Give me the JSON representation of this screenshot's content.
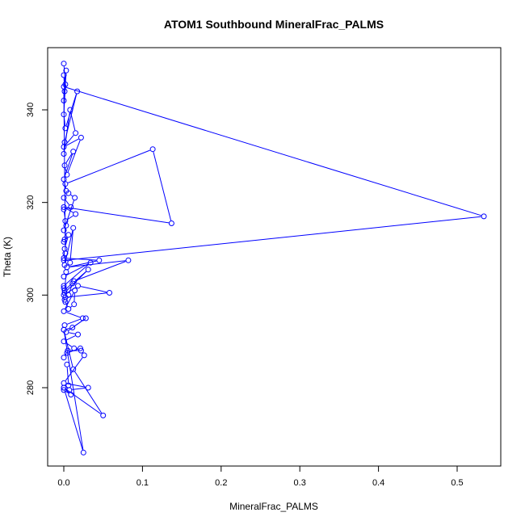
{
  "chart_data": {
    "type": "line",
    "title": "ATOM1 Southbound MineralFrac_PALMS",
    "xlabel": "MineralFrac_PALMS",
    "ylabel": "Theta (K)",
    "xlim": [
      0,
      0.55
    ],
    "ylim": [
      265,
      352
    ],
    "x_ticks": [
      0.0,
      0.1,
      0.2,
      0.3,
      0.4,
      0.5
    ],
    "x_tick_labels": [
      "0.0",
      "0.1",
      "0.2",
      "0.3",
      "0.4",
      "0.5"
    ],
    "y_ticks": [
      280,
      300,
      320,
      340
    ],
    "y_tick_labels": [
      "280",
      "300",
      "320",
      "340"
    ],
    "grid": false,
    "series_color": "#0000ff",
    "marker": "open-circle",
    "series": [
      {
        "x": [
          0.0,
          0.002,
          0.0,
          0.001,
          0.0,
          0.003,
          0.0,
          0.002,
          0.017,
          0.001,
          0.0,
          0.008,
          0.015,
          0.0,
          0.022,
          0.004,
          0.001,
          0.012,
          0.0,
          0.003,
          0.002,
          0.113,
          0.137,
          0.0,
          0.015,
          0.002,
          0.0,
          0.009,
          0.0,
          0.006,
          0.014,
          0.0,
          0.003,
          0.001,
          0.0,
          0.006,
          0.001,
          0.0,
          0.534,
          0.0,
          0.002,
          0.001,
          0.012,
          0.008,
          0.0,
          0.045,
          0.004,
          0.082,
          0.013,
          0.001,
          0.0,
          0.034,
          0.0,
          0.003,
          0.001,
          0.031,
          0.011,
          0.006,
          0.0,
          0.002,
          0.058,
          0.018,
          0.0,
          0.002,
          0.001,
          0.006,
          0.013,
          0.014,
          0.0,
          0.024,
          0.001,
          0.0,
          0.011,
          0.028,
          0.003,
          0.018,
          0.0,
          0.013,
          0.021,
          0.004,
          0.0,
          0.005,
          0.022,
          0.026,
          0.0,
          0.031,
          0.007,
          0.0,
          0.009,
          0.0,
          0.05,
          0.012,
          0.0,
          0.025,
          0.0,
          0.006,
          0.004
        ],
        "y": [
          350,
          345.5,
          347.5,
          344,
          342,
          348.5,
          339,
          336,
          344,
          333,
          330.5,
          340,
          335,
          332,
          334,
          326,
          328,
          331,
          325,
          322.5,
          324,
          331.5,
          315.5,
          319,
          317.5,
          316,
          318.5,
          319,
          321,
          322,
          321,
          314,
          315,
          312,
          311.5,
          313,
          310,
          307.5,
          317,
          345,
          309,
          306.5,
          314.5,
          307,
          308,
          307.5,
          306,
          307.5,
          303,
          301,
          302,
          307,
          304,
          305,
          300.5,
          305.5,
          302.5,
          300,
          301.5,
          299.5,
          300.5,
          302,
          300,
          298.5,
          299,
          297,
          298,
          301,
          296.5,
          295,
          293.5,
          292.5,
          293,
          295,
          292,
          291.5,
          290,
          288.5,
          288.5,
          287.5,
          286.5,
          288,
          288,
          287,
          281,
          280,
          279.5,
          279.5,
          278.5,
          280,
          274,
          284,
          292.5,
          266,
          280,
          280.5,
          285
        ]
      }
    ]
  }
}
